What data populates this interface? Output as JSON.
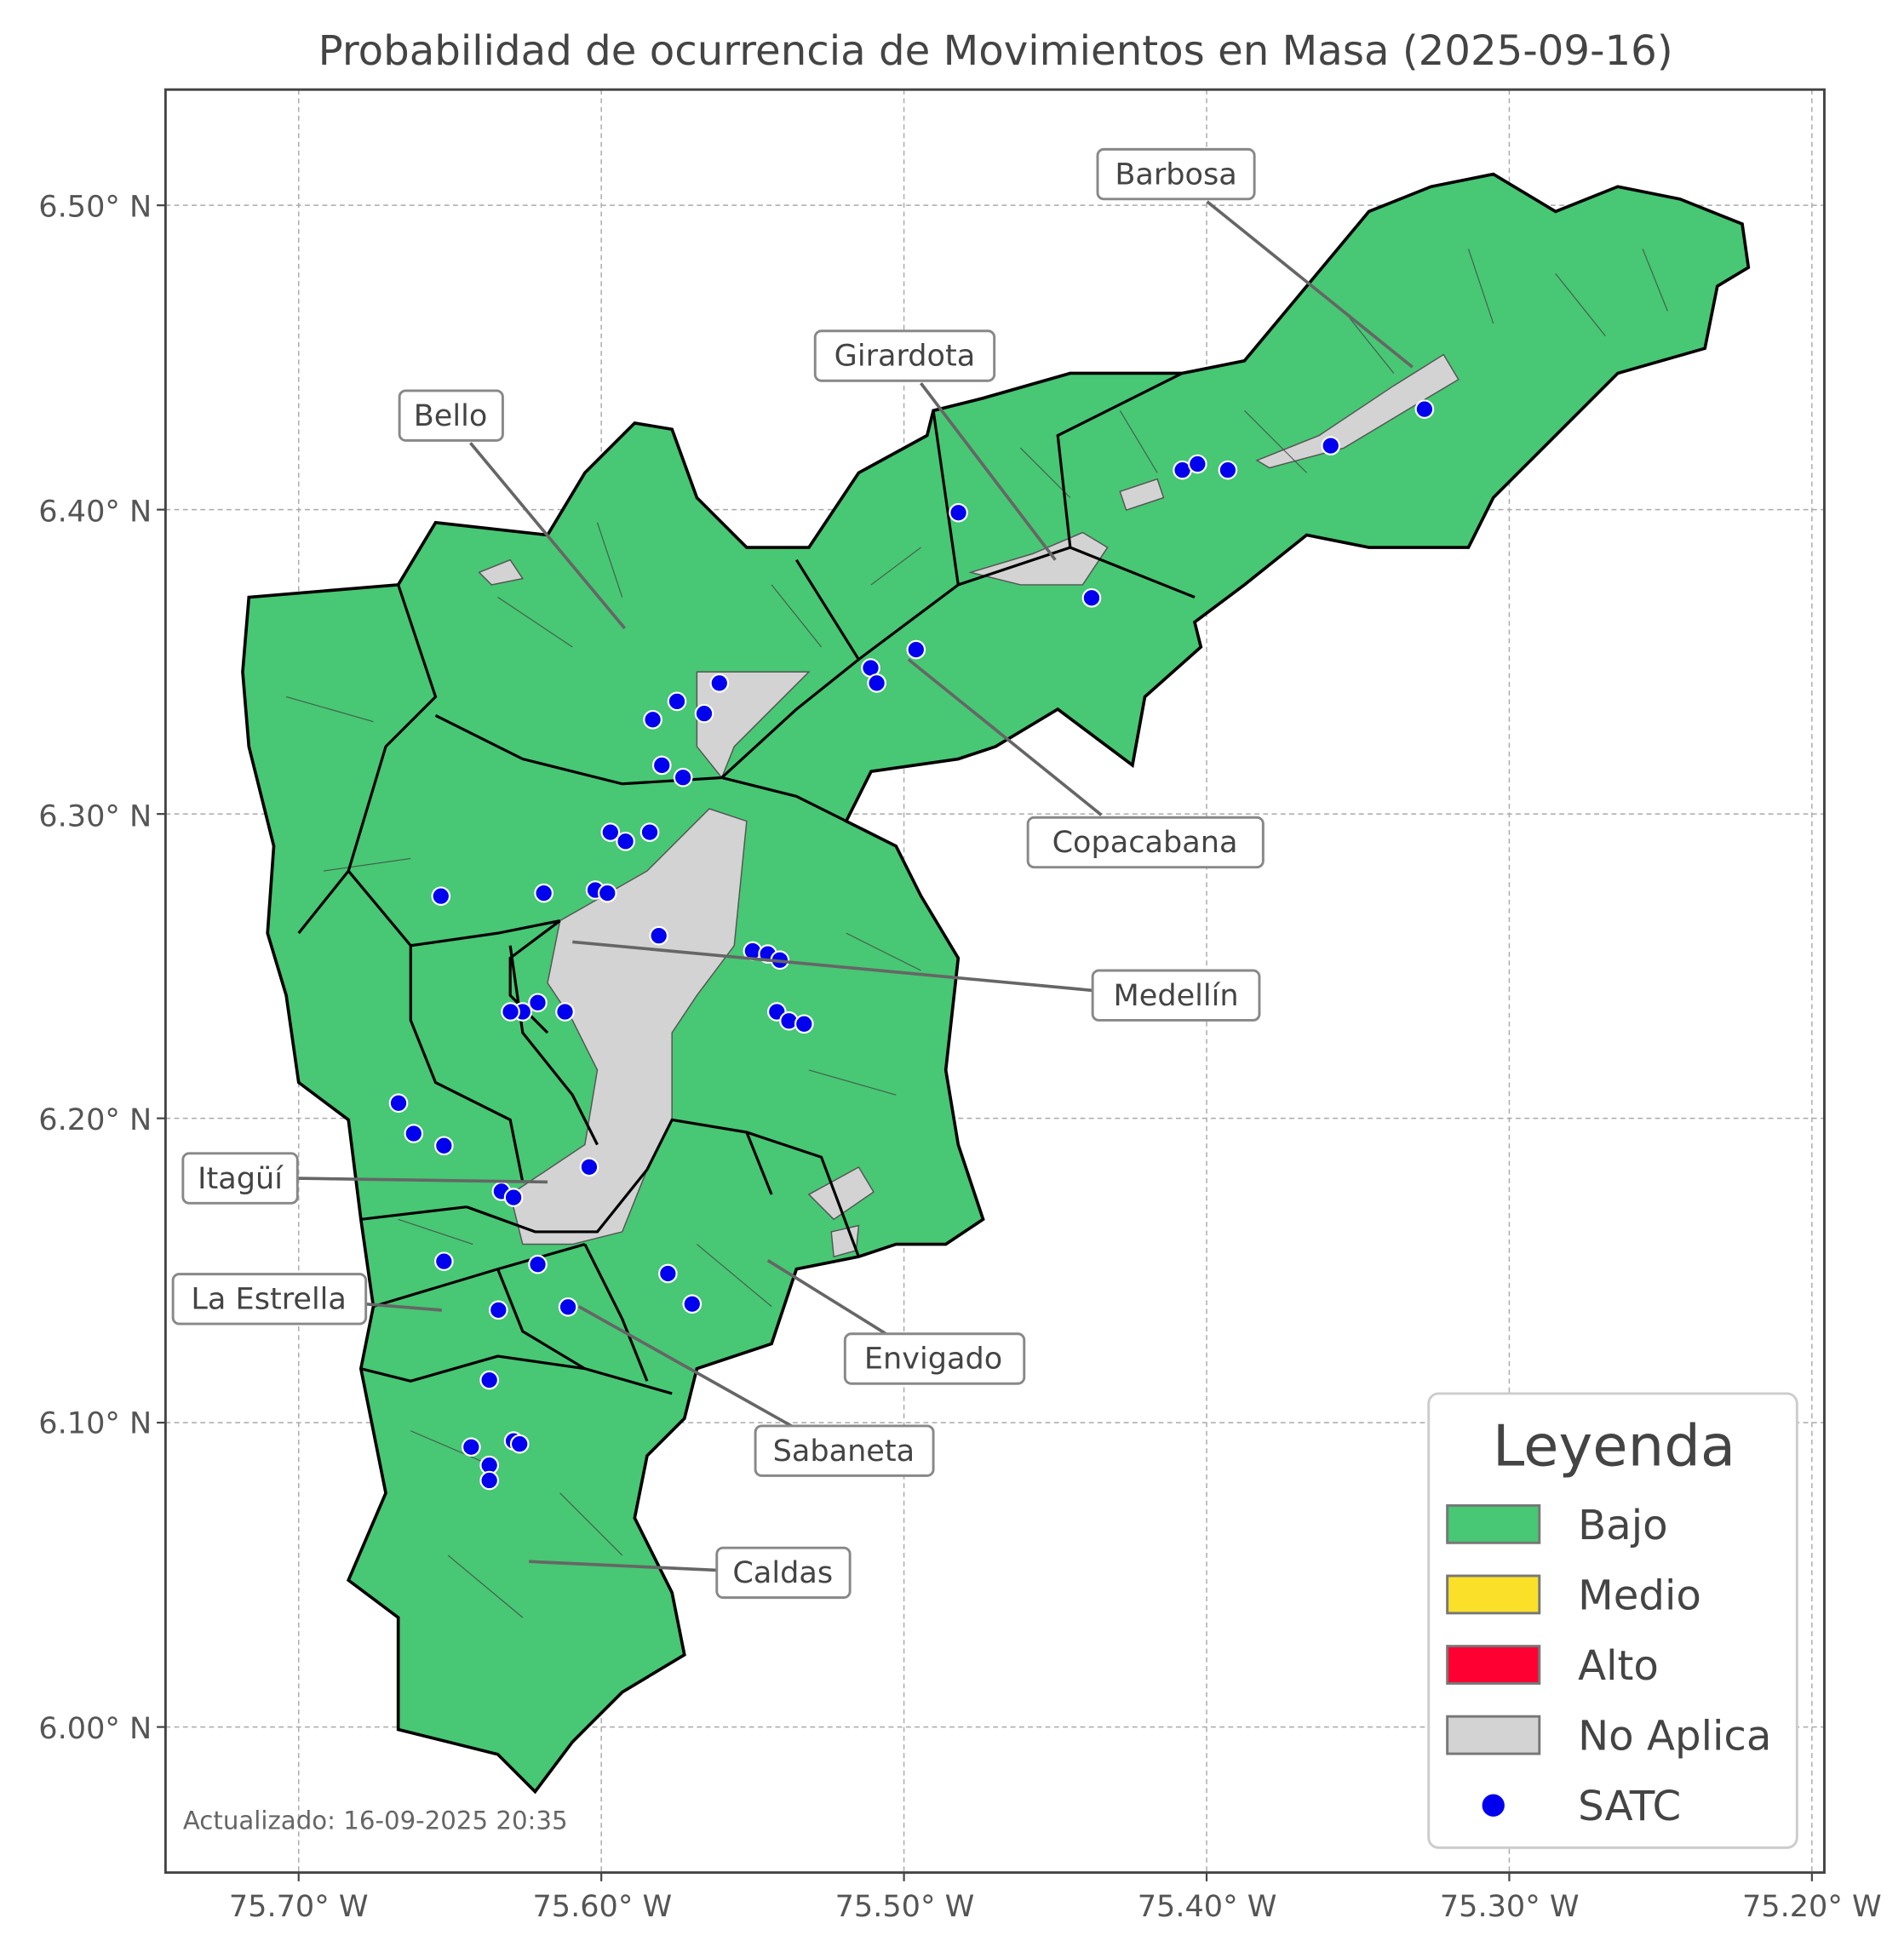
{
  "title": "Probabilidad de ocurrencia de Movimientos en Masa (2025-09-16)",
  "updated": "Actualizado: 16-09-2025 20:35",
  "axes": {
    "x_ticks": [
      "75.70° W",
      "75.60° W",
      "75.50° W",
      "75.40° W",
      "75.30° W",
      "75.20° W"
    ],
    "y_ticks": [
      "6.50° N",
      "6.40° N",
      "6.30° N",
      "6.20° N",
      "6.10° N",
      "6.00° N"
    ],
    "grid": true
  },
  "colors": {
    "bajo": "#48c774",
    "medio": "#fbe02a",
    "alto": "#ff0032",
    "no_aplica": "#d3d3d3",
    "satc": "#0000ee"
  },
  "municipalities": [
    "Barbosa",
    "Girardota",
    "Bello",
    "Copacabana",
    "Medellín",
    "Itagüí",
    "La Estrella",
    "Envigado",
    "Sabaneta",
    "Caldas"
  ],
  "legend": {
    "title": "Leyenda",
    "items": [
      {
        "label": "Bajo",
        "color": "#48c774",
        "kind": "patch"
      },
      {
        "label": "Medio",
        "color": "#fbe02a",
        "kind": "patch"
      },
      {
        "label": "Alto",
        "color": "#ff0032",
        "kind": "patch"
      },
      {
        "label": "No Aplica",
        "color": "#d3d3d3",
        "kind": "patch"
      },
      {
        "label": "SATC",
        "color": "#0000ee",
        "kind": "point"
      }
    ]
  },
  "chart_data": {
    "type": "scatter",
    "xlim": [
      -75.744,
      -75.196
    ],
    "ylim": [
      5.955,
      6.536
    ],
    "series": [
      {
        "name": "SATC",
        "points": [
          [
            -75.328,
            6.433
          ],
          [
            -75.359,
            6.421
          ],
          [
            -75.408,
            6.413
          ],
          [
            -75.403,
            6.415
          ],
          [
            -75.393,
            6.413
          ],
          [
            -75.482,
            6.399
          ],
          [
            -75.438,
            6.371
          ],
          [
            -75.496,
            6.354
          ],
          [
            -75.511,
            6.348
          ],
          [
            -75.509,
            6.343
          ],
          [
            -75.561,
            6.343
          ],
          [
            -75.575,
            6.337
          ],
          [
            -75.583,
            6.331
          ],
          [
            -75.566,
            6.333
          ],
          [
            -75.58,
            6.316
          ],
          [
            -75.573,
            6.312
          ],
          [
            -75.597,
            6.294
          ],
          [
            -75.592,
            6.291
          ],
          [
            -75.584,
            6.294
          ],
          [
            -75.653,
            6.273
          ],
          [
            -75.619,
            6.274
          ],
          [
            -75.602,
            6.275
          ],
          [
            -75.598,
            6.274
          ],
          [
            -75.581,
            6.26
          ],
          [
            -75.55,
            6.255
          ],
          [
            -75.545,
            6.254
          ],
          [
            -75.541,
            6.252
          ],
          [
            -75.542,
            6.235
          ],
          [
            -75.538,
            6.232
          ],
          [
            -75.533,
            6.231
          ],
          [
            -75.621,
            6.238
          ],
          [
            -75.626,
            6.235
          ],
          [
            -75.63,
            6.235
          ],
          [
            -75.612,
            6.235
          ],
          [
            -75.667,
            6.205
          ],
          [
            -75.662,
            6.195
          ],
          [
            -75.652,
            6.191
          ],
          [
            -75.604,
            6.184
          ],
          [
            -75.633,
            6.176
          ],
          [
            -75.629,
            6.174
          ],
          [
            -75.652,
            6.153
          ],
          [
            -75.621,
            6.152
          ],
          [
            -75.578,
            6.149
          ],
          [
            -75.57,
            6.139
          ],
          [
            -75.634,
            6.137
          ],
          [
            -75.611,
            6.138
          ],
          [
            -75.637,
            6.114
          ],
          [
            -75.643,
            6.092
          ],
          [
            -75.629,
            6.094
          ],
          [
            -75.627,
            6.093
          ],
          [
            -75.637,
            6.086
          ],
          [
            -75.637,
            6.081
          ]
        ]
      }
    ]
  }
}
